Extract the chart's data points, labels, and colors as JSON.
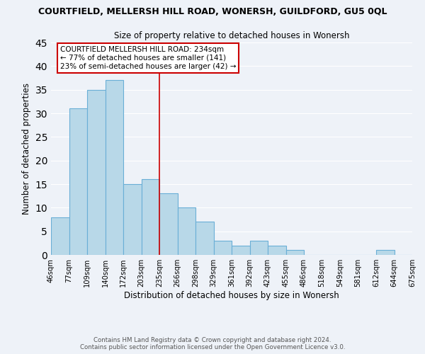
{
  "title": "COURTFIELD, MELLERSH HILL ROAD, WONERSH, GUILDFORD, GU5 0QL",
  "subtitle": "Size of property relative to detached houses in Wonersh",
  "xlabel": "Distribution of detached houses by size in Wonersh",
  "ylabel": "Number of detached properties",
  "footer_line1": "Contains HM Land Registry data © Crown copyright and database right 2024.",
  "footer_line2": "Contains public sector information licensed under the Open Government Licence v3.0.",
  "bin_labels": [
    "46sqm",
    "77sqm",
    "109sqm",
    "140sqm",
    "172sqm",
    "203sqm",
    "235sqm",
    "266sqm",
    "298sqm",
    "329sqm",
    "361sqm",
    "392sqm",
    "423sqm",
    "455sqm",
    "486sqm",
    "518sqm",
    "549sqm",
    "581sqm",
    "612sqm",
    "644sqm",
    "675sqm"
  ],
  "counts": [
    8,
    31,
    35,
    37,
    15,
    16,
    13,
    10,
    7,
    3,
    2,
    3,
    2,
    1,
    0,
    0,
    0,
    0,
    1,
    0
  ],
  "bar_color": "#b8d8e8",
  "bar_edge_color": "#6aafd6",
  "marker_bin_idx": 6,
  "marker_label_line1": "COURTFIELD MELLERSH HILL ROAD: 234sqm",
  "marker_label_line2": "← 77% of detached houses are smaller (141)",
  "marker_label_line3": "23% of semi-detached houses are larger (42) →",
  "ylim": [
    0,
    45
  ],
  "yticks": [
    0,
    5,
    10,
    15,
    20,
    25,
    30,
    35,
    40,
    45
  ],
  "bg_color": "#eef2f8",
  "grid_color": "#ffffff",
  "annotation_box_color": "#ffffff",
  "annotation_border_color": "#cc0000",
  "marker_line_color": "#cc0000"
}
